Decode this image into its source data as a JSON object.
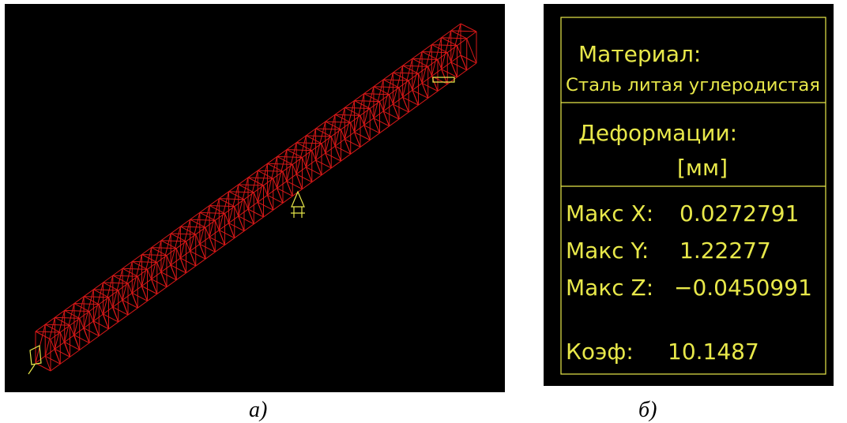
{
  "panel_a": {
    "caption": "а)"
  },
  "panel_b": {
    "caption": "б)",
    "material": {
      "label": "Материал:",
      "value": "Сталь литая углеродистая"
    },
    "deformations": {
      "label": "Деформации:",
      "unit": "[мм]"
    },
    "max": [
      {
        "label": "Макс X:",
        "value": "0.0272791"
      },
      {
        "label": "Макс Y:",
        "value": "1.22277"
      },
      {
        "label": "Макс Z:",
        "value": "−0.0450991"
      }
    ],
    "coefficient": {
      "label": "Коэф:",
      "value": "10.1487"
    }
  }
}
